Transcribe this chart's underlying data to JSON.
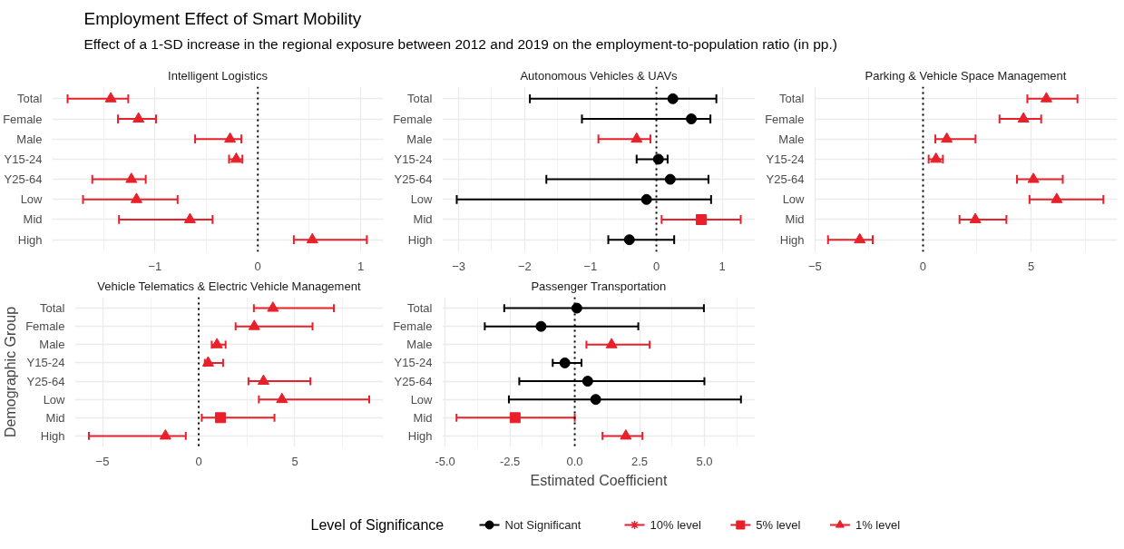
{
  "chart_data": [
    {
      "type": "other",
      "title": "Employment Effect of Smart Mobility",
      "subtitle": "Effect of a 1-SD increase in the regional exposure between 2012 and 2019 on the employment-to-population ratio (in pp.)"
    },
    {
      "type": "scatter",
      "orientation": "horizontal",
      "title": "Intelligent Logistics",
      "categories": [
        "Total",
        "Female",
        "Male",
        "Y15-24",
        "Y25-64",
        "Low",
        "Mid",
        "High"
      ],
      "xlim": [
        -2.0,
        1.22
      ],
      "xticks": [
        -1,
        0,
        1
      ],
      "grid": true,
      "ref_lines": [
        {
          "axis": "x",
          "value": 0,
          "line_style": "dotted"
        }
      ],
      "series": [
        {
          "color": "#e8202a",
          "marker": "triangle",
          "values": [
            -1.43,
            -1.16,
            -0.27,
            -0.21,
            -1.23,
            -1.18,
            -0.66,
            0.53
          ],
          "errors": [
            [
              -1.85,
              -1.26
            ],
            [
              -1.36,
              -0.99
            ],
            [
              -0.61,
              -0.16
            ],
            [
              -0.28,
              -0.15
            ],
            [
              -1.61,
              -1.09
            ],
            [
              -1.7,
              -0.78
            ],
            [
              -1.35,
              -0.44
            ],
            [
              0.35,
              1.06
            ]
          ]
        }
      ]
    },
    {
      "type": "scatter",
      "orientation": "horizontal",
      "title": "Autonomous Vehicles & UAVs",
      "categories": [
        "Total",
        "Female",
        "Male",
        "Y15-24",
        "Y25-64",
        "Low",
        "Mid",
        "High"
      ],
      "xlim": [
        -3.25,
        1.5
      ],
      "xticks": [
        -3,
        -2,
        -1,
        0,
        1
      ],
      "grid": true,
      "ref_lines": [
        {
          "axis": "x",
          "value": 0,
          "line_style": "dotted"
        }
      ],
      "series": [
        {
          "color": "#000000",
          "marker": "circle",
          "values": [
            0.25,
            0.53,
            null,
            0.03,
            0.21,
            -0.15,
            null,
            -0.41
          ],
          "errors": [
            [
              -1.92,
              0.91
            ],
            [
              -1.13,
              0.82
            ],
            null,
            [
              -0.3,
              0.17
            ],
            [
              -1.67,
              0.79
            ],
            [
              -3.03,
              0.83
            ],
            null,
            [
              -0.73,
              0.27
            ]
          ]
        },
        {
          "color": "#e8202a",
          "marker": "square",
          "values": [
            null,
            null,
            null,
            null,
            null,
            null,
            0.68,
            null
          ],
          "errors": [
            null,
            null,
            null,
            null,
            null,
            null,
            [
              0.08,
              1.28
            ],
            null
          ]
        },
        {
          "color": "#e8202a",
          "marker": "triangle",
          "values": [
            null,
            null,
            -0.3,
            null,
            null,
            null,
            null,
            null
          ],
          "errors": [
            null,
            null,
            [
              -0.88,
              -0.09
            ],
            null,
            null,
            null,
            null,
            null
          ]
        }
      ]
    },
    {
      "type": "scatter",
      "orientation": "horizontal",
      "title": "Parking & Vehicle Space Management",
      "categories": [
        "Total",
        "Female",
        "Male",
        "Y15-24",
        "Y25-64",
        "Low",
        "Mid",
        "High"
      ],
      "xlim": [
        -5.04,
        8.99
      ],
      "xticks": [
        -5,
        0,
        5
      ],
      "grid": true,
      "ref_lines": [
        {
          "axis": "x",
          "value": 0,
          "line_style": "dotted"
        }
      ],
      "series": [
        {
          "color": "#e8202a",
          "marker": "triangle",
          "values": [
            5.71,
            4.65,
            1.1,
            0.6,
            5.11,
            6.19,
            2.42,
            -2.93
          ],
          "errors": [
            [
              4.83,
              7.15
            ],
            [
              3.54,
              5.47
            ],
            [
              0.57,
              2.43
            ],
            [
              0.26,
              0.92
            ],
            [
              4.35,
              6.47
            ],
            [
              4.93,
              8.35
            ],
            [
              1.69,
              3.86
            ],
            [
              -4.4,
              -2.33
            ]
          ]
        }
      ]
    },
    {
      "type": "scatter",
      "orientation": "horizontal",
      "title": "Vehicle Telematics & Electric Vehicle Management",
      "ylabel": "Demographic Group",
      "categories": [
        "Total",
        "Female",
        "Male",
        "Y15-24",
        "Y25-64",
        "Low",
        "Mid",
        "High"
      ],
      "xlim": [
        -6.44,
        9.6
      ],
      "xticks": [
        -5,
        0,
        5
      ],
      "grid": true,
      "ref_lines": [
        {
          "axis": "x",
          "value": 0,
          "line_style": "dotted"
        }
      ],
      "series": [
        {
          "color": "#e8202a",
          "marker": "square",
          "values": [
            null,
            null,
            null,
            null,
            null,
            null,
            1.13,
            null
          ],
          "errors": [
            null,
            null,
            null,
            null,
            null,
            null,
            [
              0.16,
              3.94
            ],
            null
          ]
        },
        {
          "color": "#e8202a",
          "marker": "triangle",
          "values": [
            3.86,
            2.89,
            0.95,
            0.49,
            3.37,
            4.33,
            null,
            -1.73
          ],
          "errors": [
            [
              2.87,
              7.03
            ],
            [
              1.92,
              5.92
            ],
            [
              0.68,
              1.4
            ],
            [
              0.32,
              1.27
            ],
            [
              2.59,
              5.81
            ],
            [
              3.13,
              8.87
            ],
            null,
            [
              -5.71,
              -0.67
            ]
          ]
        }
      ]
    },
    {
      "type": "scatter",
      "orientation": "horizontal",
      "title": "Passenger Transportation",
      "xlabel": "Estimated Coefficient",
      "legend": "bottom",
      "legend_title": "Level of Significance",
      "categories": [
        "Total",
        "Female",
        "Male",
        "Y15-24",
        "Y25-64",
        "Low",
        "Mid",
        "High"
      ],
      "xlim": [
        -5.11,
        6.96
      ],
      "xticks": [
        {
          "value": -5,
          "label": "-5.0"
        },
        {
          "value": -2.5,
          "label": "-2.5"
        },
        {
          "value": 0,
          "label": "0.0"
        },
        {
          "value": 2.5,
          "label": "2.5"
        },
        {
          "value": 5,
          "label": "5.0"
        }
      ],
      "grid": true,
      "ref_lines": [
        {
          "axis": "x",
          "value": 0,
          "line_style": "dotted"
        }
      ],
      "series": [
        {
          "name": "Not Significant",
          "color": "#000000",
          "marker": "circle",
          "values": [
            0.08,
            -1.3,
            null,
            -0.38,
            0.5,
            0.81,
            null,
            null
          ],
          "errors": [
            [
              -2.72,
              4.98
            ],
            [
              -3.47,
              2.45
            ],
            null,
            [
              -0.85,
              0.26
            ],
            [
              -2.14,
              5.0
            ],
            [
              -2.54,
              6.41
            ],
            null,
            null
          ]
        },
        {
          "name": "10% level",
          "color": "#e8202a",
          "marker": "star",
          "values": [
            null,
            null,
            null,
            null,
            null,
            null,
            null,
            null
          ],
          "errors": [
            null,
            null,
            null,
            null,
            null,
            null,
            null,
            null
          ]
        },
        {
          "name": "5% level",
          "color": "#e8202a",
          "marker": "square",
          "values": [
            null,
            null,
            null,
            null,
            null,
            null,
            -2.3,
            null
          ],
          "errors": [
            null,
            null,
            null,
            null,
            null,
            null,
            [
              -4.56,
              0.0
            ],
            null
          ]
        },
        {
          "name": "1% level",
          "color": "#e8202a",
          "marker": "triangle",
          "values": [
            null,
            null,
            1.42,
            null,
            null,
            null,
            null,
            1.97
          ],
          "errors": [
            null,
            null,
            [
              0.45,
              2.89
            ],
            null,
            null,
            null,
            null,
            [
              1.07,
              2.61
            ]
          ]
        }
      ]
    }
  ]
}
